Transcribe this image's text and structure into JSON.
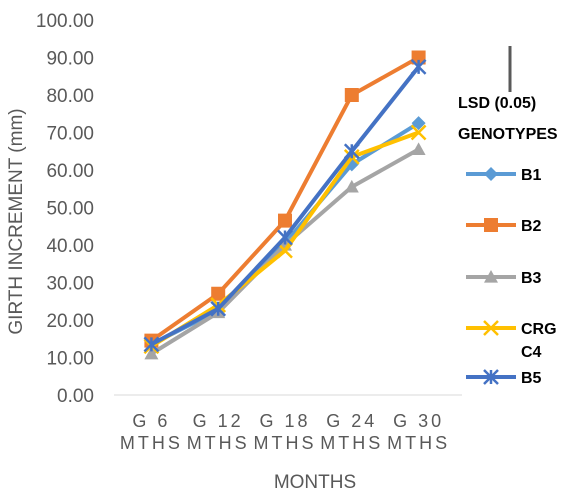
{
  "chart_data": {
    "type": "line",
    "categories": [
      [
        "G 6",
        "MTHS"
      ],
      [
        "G 12",
        "MTHS"
      ],
      [
        "G 18",
        "MTHS"
      ],
      [
        "G 24",
        "MTHS"
      ],
      [
        "G 30",
        "MTHS"
      ]
    ],
    "series": [
      {
        "name": "B1",
        "values": [
          13.5,
          22.5,
          40.5,
          61.5,
          72.5
        ],
        "color": "#5B9BD5",
        "marker": "diamond"
      },
      {
        "name": "B2",
        "values": [
          14.5,
          27.0,
          46.5,
          80.0,
          90.0
        ],
        "color": "#ED7D31",
        "marker": "square"
      },
      {
        "name": "B3",
        "values": [
          11.0,
          22.0,
          40.0,
          55.5,
          65.5
        ],
        "color": "#A5A5A5",
        "marker": "triangle"
      },
      {
        "name": "CRG C4",
        "values": [
          13.0,
          24.0,
          38.5,
          63.5,
          70.0
        ],
        "color": "#FFC000",
        "marker": "x"
      },
      {
        "name": "B5",
        "values": [
          13.5,
          23.0,
          42.0,
          65.0,
          87.5
        ],
        "color": "#4472C4",
        "marker": "star"
      }
    ],
    "title": "",
    "xlabel": "MONTHS",
    "ylabel": "GIRTH INCREMENT  (mm)",
    "ylim": [
      0,
      100
    ],
    "yticks": [
      "0.00",
      "10.00",
      "20.00",
      "30.00",
      "40.00",
      "50.00",
      "60.00",
      "70.00",
      "80.00",
      "90.00",
      "100.00"
    ],
    "grid": false,
    "legend_placement": "right",
    "annotations": {
      "lsd_label": "LSD (0.05)",
      "legend_heading": "GENOTYPES",
      "lsd_bar_color": "#595959"
    }
  }
}
